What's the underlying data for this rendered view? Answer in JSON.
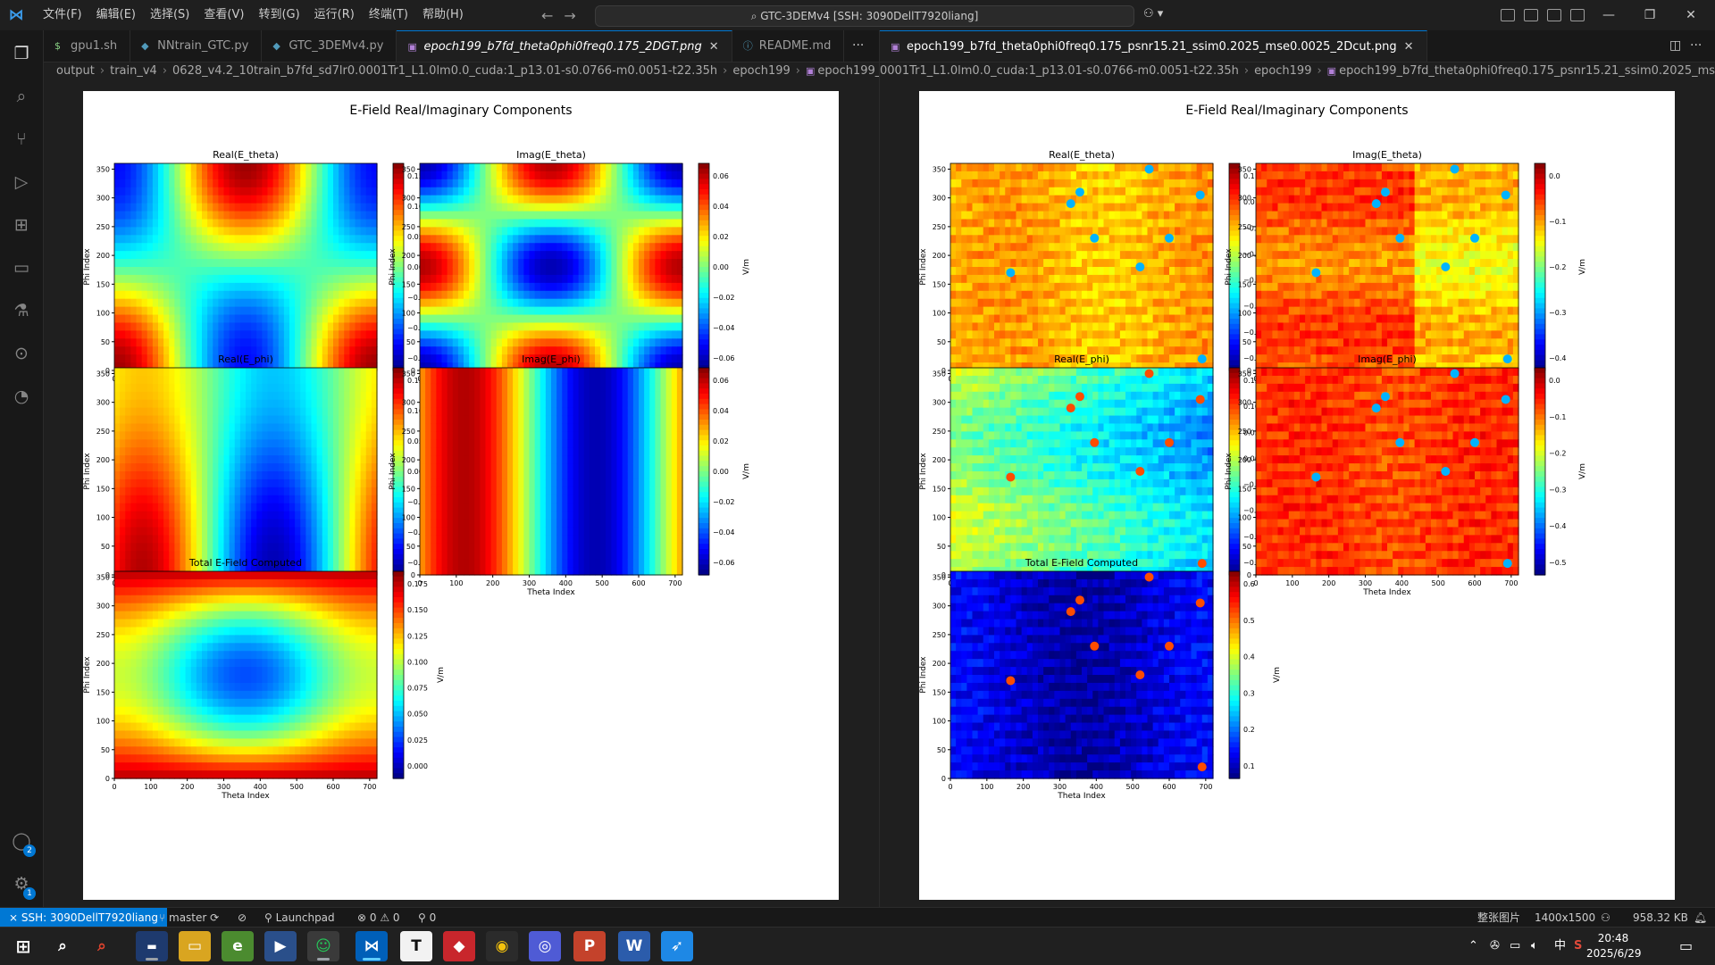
{
  "menu": [
    "文件(F)",
    "编辑(E)",
    "选择(S)",
    "查看(V)",
    "转到(G)",
    "运行(R)",
    "终端(T)",
    "帮助(H)"
  ],
  "command_center": "GTC-3DEMv4 [SSH: 3090DellT7920liang]",
  "left_tabs": [
    {
      "label": "gpu1.sh",
      "icon": "$",
      "color": "#89d185",
      "active": false
    },
    {
      "label": "NNtrain_GTC.py",
      "icon": "◆",
      "color": "#519aba",
      "active": false
    },
    {
      "label": "GTC_3DEMv4.py",
      "icon": "◆",
      "color": "#519aba",
      "active": false
    },
    {
      "label": "epoch199_b7fd_theta0phi0freq0.175_2DGT.png",
      "icon": "▣",
      "color": "#b180d7",
      "active": true,
      "italic": true
    },
    {
      "label": "README.md",
      "icon": "ⓘ",
      "color": "#519aba",
      "active": false
    }
  ],
  "right_tabs": [
    {
      "label": "epoch199_b7fd_theta0phi0freq0.175_psnr15.21_ssim0.2025_mse0.0025_2Dcut.png",
      "icon": "▣",
      "color": "#b180d7",
      "active": true
    }
  ],
  "left_breadcrumb": [
    "output",
    "train_v4",
    "0628_v4.2_10train_b7fd_sd7lr0.0001Tr1_L1.0lm0.0_cuda:1_p13.01-s0.0766-m0.0051-t22.35h",
    "epoch199",
    "epoch199_b7fd_theta0phi0freq0.175_2DGT.png"
  ],
  "right_breadcrumb": [
    "0001Tr1_L1.0lm0.0_cuda:1_p13.01-s0.0766-m0.0051-t22.35h",
    "epoch199",
    "epoch199_b7fd_theta0phi0freq0.175_psnr15.21_ssim0.2025_mse0.0025_2Dcut.png"
  ],
  "figure_title": "E-Field Real/Imaginary Components",
  "axis": {
    "xlabel": "Theta Index",
    "ylabel": "Phi Index",
    "cbar_label": "V/m",
    "xticks": [
      0,
      100,
      200,
      300,
      400,
      500,
      600,
      700
    ],
    "yticks": [
      0,
      50,
      100,
      150,
      200,
      250,
      300,
      350
    ],
    "xlim": [
      0,
      720
    ],
    "ylim": [
      0,
      360
    ]
  },
  "left_panels": [
    {
      "title": "Real(E_theta)",
      "cticks": [
        "0.15",
        "0.10",
        "0.05",
        "0.00",
        "−0.05",
        "−0.10",
        "−0.15"
      ]
    },
    {
      "title": "Imag(E_theta)",
      "cticks": [
        "0.06",
        "0.04",
        "0.02",
        "0.00",
        "−0.02",
        "−0.04",
        "−0.06"
      ]
    },
    {
      "title": "Real(E_phi)",
      "cticks": [
        "0.15",
        "0.10",
        "0.05",
        "0.00",
        "−0.05",
        "−0.10",
        "−0.15"
      ]
    },
    {
      "title": "Imag(E_phi)",
      "cticks": [
        "0.06",
        "0.04",
        "0.02",
        "0.00",
        "−0.02",
        "−0.04",
        "−0.06"
      ]
    },
    {
      "title": "Total E-Field Computed",
      "cticks": [
        "0.175",
        "0.150",
        "0.125",
        "0.100",
        "0.075",
        "0.050",
        "0.025",
        "0.000"
      ]
    }
  ],
  "right_panels": [
    {
      "title": "Real(E_theta)",
      "cticks": [
        "0.1",
        "0.0",
        "−0.1",
        "−0.2",
        "−0.3",
        "−0.4",
        "−0.5",
        "−0.6"
      ]
    },
    {
      "title": "Imag(E_theta)",
      "cticks": [
        "0.0",
        "−0.1",
        "−0.2",
        "−0.3",
        "−0.4"
      ]
    },
    {
      "title": "Real(E_phi)",
      "cticks": [
        "0.15",
        "0.10",
        "0.05",
        "0.00",
        "−0.05",
        "−0.10",
        "−0.15",
        "−0.20"
      ]
    },
    {
      "title": "Imag(E_phi)",
      "cticks": [
        "0.0",
        "−0.1",
        "−0.2",
        "−0.3",
        "−0.4",
        "−0.5"
      ]
    },
    {
      "title": "Total E-Field Computed",
      "cticks": [
        "0.6",
        "0.5",
        "0.4",
        "0.3",
        "0.2",
        "0.1"
      ]
    }
  ],
  "status": {
    "remote": "SSH: 3090DellT7920liang",
    "branch": "master",
    "launchpad": "Launchpad",
    "problems": "0 ⚠ 0",
    "ports": "0",
    "image_mode": "整张图片",
    "dimensions": "1400x1500",
    "filesize": "958.32 KB"
  },
  "taskbar": {
    "time": "20:48",
    "date": "2025/6/29",
    "ime": "中"
  },
  "colors": {
    "accent": "#0078d4",
    "editor_bg": "#1f1f1f",
    "jet_low": "#00008f",
    "jet_high": "#800000"
  }
}
